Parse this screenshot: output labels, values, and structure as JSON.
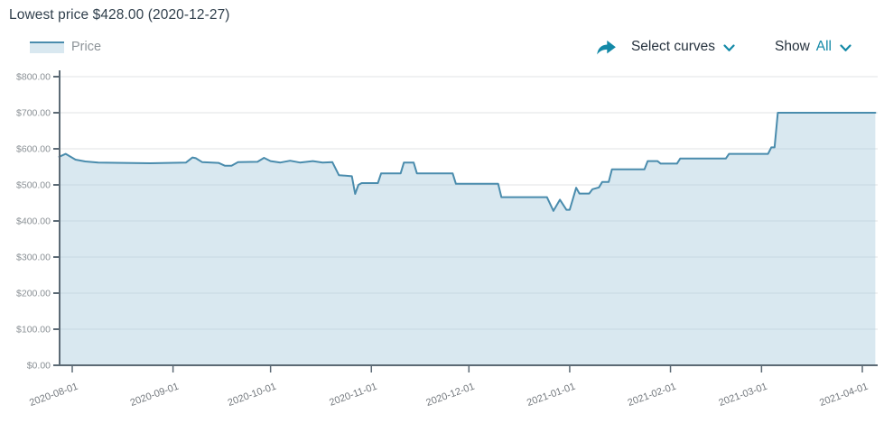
{
  "header": {
    "lowest_text": "Lowest price $428.00 (2020-12-27)"
  },
  "legend": {
    "items": [
      {
        "label": "Price"
      }
    ]
  },
  "toolbar": {
    "share_icon": "share-arrow-icon",
    "select_curves_label": "Select curves",
    "show_label": "Show",
    "show_value": "All",
    "chevron_icon": "chevron-down-icon"
  },
  "colors": {
    "accent_teal": "#1389a7",
    "line": "#4a8cad",
    "area_fill": "rgba(170,203,222,0.45)",
    "grid": "#e0e3e5",
    "axis": "#5c6a75",
    "y_label": "#8a9095",
    "x_label": "#74797e",
    "title_text": "#31404d"
  },
  "chart_data": {
    "type": "area",
    "title": "",
    "xlabel": "",
    "ylabel": "",
    "ylim": [
      0,
      800
    ],
    "grid": "horizontal",
    "legend_position": "top-left",
    "lowest_point": {
      "date": "2020-12-27",
      "value": 428
    },
    "y_ticks": [
      {
        "v": 0,
        "label": "$0.00"
      },
      {
        "v": 100,
        "label": "$100.00"
      },
      {
        "v": 200,
        "label": "$200.00"
      },
      {
        "v": 300,
        "label": "$300.00"
      },
      {
        "v": 400,
        "label": "$400.00"
      },
      {
        "v": 500,
        "label": "$500.00"
      },
      {
        "v": 600,
        "label": "$600.00"
      },
      {
        "v": 700,
        "label": "$700.00"
      },
      {
        "v": 800,
        "label": "$800.00"
      }
    ],
    "x_ticks": [
      {
        "date": "2020-08-01",
        "label": "2020-08-01"
      },
      {
        "date": "2020-09-01",
        "label": "2020-09-01"
      },
      {
        "date": "2020-10-01",
        "label": "2020-10-01"
      },
      {
        "date": "2020-11-01",
        "label": "2020-11-01"
      },
      {
        "date": "2020-12-01",
        "label": "2020-12-01"
      },
      {
        "date": "2021-01-01",
        "label": "2021-01-01"
      },
      {
        "date": "2021-02-01",
        "label": "2021-02-01"
      },
      {
        "date": "2021-03-01",
        "label": "2021-03-01"
      },
      {
        "date": "2021-04-01",
        "label": "2021-04-01"
      }
    ],
    "series": [
      {
        "name": "Price",
        "points": [
          [
            "2020-07-28",
            578
          ],
          [
            "2020-07-30",
            586
          ],
          [
            "2020-08-02",
            570
          ],
          [
            "2020-08-05",
            565
          ],
          [
            "2020-08-09",
            562
          ],
          [
            "2020-08-25",
            560
          ],
          [
            "2020-09-05",
            562
          ],
          [
            "2020-09-07",
            576
          ],
          [
            "2020-09-08",
            574
          ],
          [
            "2020-09-10",
            563
          ],
          [
            "2020-09-15",
            561
          ],
          [
            "2020-09-17",
            553
          ],
          [
            "2020-09-19",
            553
          ],
          [
            "2020-09-21",
            563
          ],
          [
            "2020-09-27",
            564
          ],
          [
            "2020-09-29",
            575
          ],
          [
            "2020-10-01",
            566
          ],
          [
            "2020-10-04",
            562
          ],
          [
            "2020-10-07",
            567
          ],
          [
            "2020-10-10",
            562
          ],
          [
            "2020-10-14",
            566
          ],
          [
            "2020-10-17",
            562
          ],
          [
            "2020-10-20",
            563
          ],
          [
            "2020-10-22",
            527
          ],
          [
            "2020-10-26",
            524
          ],
          [
            "2020-10-27",
            475
          ],
          [
            "2020-10-28",
            500
          ],
          [
            "2020-10-29",
            505
          ],
          [
            "2020-11-03",
            505
          ],
          [
            "2020-11-04",
            532
          ],
          [
            "2020-11-10",
            532
          ],
          [
            "2020-11-11",
            562
          ],
          [
            "2020-11-14",
            562
          ],
          [
            "2020-11-15",
            532
          ],
          [
            "2020-11-26",
            532
          ],
          [
            "2020-11-27",
            503
          ],
          [
            "2020-12-10",
            503
          ],
          [
            "2020-12-11",
            466
          ],
          [
            "2020-12-25",
            466
          ],
          [
            "2020-12-27",
            428
          ],
          [
            "2020-12-29",
            459
          ],
          [
            "2020-12-31",
            431
          ],
          [
            "2021-01-01",
            431
          ],
          [
            "2021-01-03",
            492
          ],
          [
            "2021-01-04",
            476
          ],
          [
            "2021-01-07",
            476
          ],
          [
            "2021-01-08",
            488
          ],
          [
            "2021-01-10",
            493
          ],
          [
            "2021-01-11",
            508
          ],
          [
            "2021-01-13",
            508
          ],
          [
            "2021-01-14",
            543
          ],
          [
            "2021-01-24",
            543
          ],
          [
            "2021-01-25",
            566
          ],
          [
            "2021-01-28",
            566
          ],
          [
            "2021-01-29",
            559
          ],
          [
            "2021-02-03",
            559
          ],
          [
            "2021-02-04",
            573
          ],
          [
            "2021-02-18",
            573
          ],
          [
            "2021-02-19",
            586
          ],
          [
            "2021-03-03",
            586
          ],
          [
            "2021-03-04",
            604
          ],
          [
            "2021-03-05",
            604
          ],
          [
            "2021-03-06",
            700
          ],
          [
            "2021-04-05",
            700
          ]
        ]
      }
    ]
  }
}
